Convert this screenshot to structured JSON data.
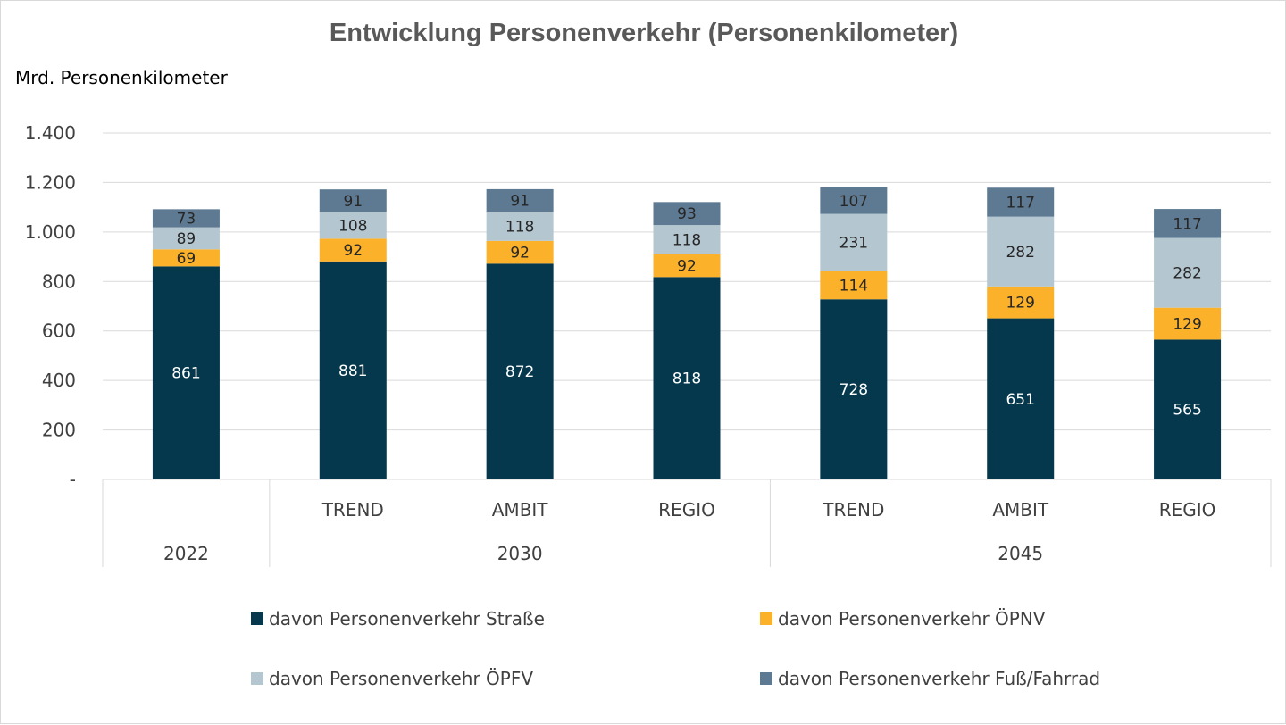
{
  "chart_data": {
    "type": "bar",
    "stacked": true,
    "title": "Entwicklung Personenverkehr (Personenkilometer)",
    "ylabel": "Mrd. Personenkilometer",
    "xlabel": "",
    "ylim": [
      0,
      1400
    ],
    "yticks": [
      0,
      200,
      400,
      600,
      800,
      1000,
      1200,
      1400
    ],
    "ytick_labels": [
      "-",
      "200",
      "400",
      "600",
      "800",
      "1.000",
      "1.200",
      "1.400"
    ],
    "grid": true,
    "legend_position": "bottom",
    "categories": [
      {
        "label": "",
        "group": "2022"
      },
      {
        "label": "TREND",
        "group": "2030"
      },
      {
        "label": "AMBIT",
        "group": "2030"
      },
      {
        "label": "REGIO",
        "group": "2030"
      },
      {
        "label": "TREND",
        "group": "2045"
      },
      {
        "label": "AMBIT",
        "group": "2045"
      },
      {
        "label": "REGIO",
        "group": "2045"
      }
    ],
    "groups": [
      "2022",
      "2030",
      "2045"
    ],
    "series": [
      {
        "name": "davon Personenverkehr Straße",
        "color": "#05384d",
        "label_color": "#ffffff",
        "values": [
          861,
          881,
          872,
          818,
          728,
          651,
          565
        ]
      },
      {
        "name": "davon Personenverkehr ÖPNV",
        "color": "#fbb12a",
        "label_color": "#262626",
        "values": [
          69,
          92,
          92,
          92,
          114,
          129,
          129
        ]
      },
      {
        "name": "davon Personenverkehr ÖPFV",
        "color": "#b4c6d0",
        "label_color": "#262626",
        "values": [
          89,
          108,
          118,
          118,
          231,
          282,
          282
        ]
      },
      {
        "name": "davon Personenverkehr Fuß/Fahrrad",
        "color": "#5e7a92",
        "label_color": "#262626",
        "values": [
          73,
          91,
          91,
          93,
          107,
          117,
          117
        ]
      }
    ]
  }
}
